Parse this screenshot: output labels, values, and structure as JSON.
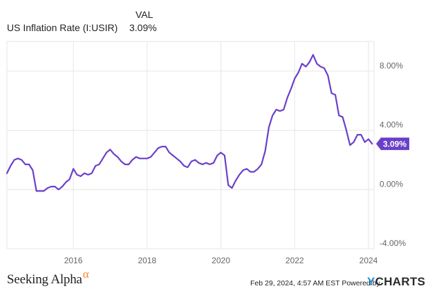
{
  "legend": {
    "column_header": "VAL",
    "series_name": "US Inflation Rate (I:USIR)",
    "series_value": "3.09%"
  },
  "footer": {
    "brand_name": "Seeking Alpha",
    "brand_symbol": "α",
    "timestamp": "Feb 29, 2024, 4:57 AM EST",
    "powered_by": "Powered by",
    "ycharts_y": "Y",
    "ycharts_rest": "CHARTS"
  },
  "colors": {
    "line": "#6a3fc9",
    "badge": "#6a3fc9",
    "grid": "#e6e6e6",
    "axis_text": "#666666"
  },
  "chart_data": {
    "type": "line",
    "title": "",
    "xlabel": "",
    "ylabel": "",
    "xlim": [
      2014.2,
      2024.15
    ],
    "ylim": [
      -4.0,
      10.0
    ],
    "grid": true,
    "y_axis_side": "right",
    "x_ticks": [
      2016,
      2018,
      2020,
      2022,
      2024
    ],
    "x_tick_labels": [
      "2016",
      "2018",
      "2020",
      "2022",
      "2024"
    ],
    "y_ticks": [
      8,
      4,
      0,
      -4
    ],
    "y_tick_labels": [
      "8.00%",
      "4.00%",
      "0.00%",
      "-4.00%"
    ],
    "last_value_label": "3.09%",
    "series": [
      {
        "name": "US Inflation Rate (I:USIR)",
        "x": [
          2014.2,
          2014.3,
          2014.4,
          2014.5,
          2014.6,
          2014.7,
          2014.8,
          2014.9,
          2015.0,
          2015.1,
          2015.2,
          2015.3,
          2015.4,
          2015.5,
          2015.6,
          2015.7,
          2015.8,
          2015.9,
          2016.0,
          2016.1,
          2016.2,
          2016.3,
          2016.4,
          2016.5,
          2016.6,
          2016.7,
          2016.8,
          2016.9,
          2017.0,
          2017.1,
          2017.2,
          2017.3,
          2017.4,
          2017.5,
          2017.6,
          2017.7,
          2017.8,
          2017.9,
          2018.0,
          2018.1,
          2018.2,
          2018.3,
          2018.4,
          2018.5,
          2018.6,
          2018.7,
          2018.8,
          2018.9,
          2019.0,
          2019.1,
          2019.2,
          2019.3,
          2019.4,
          2019.5,
          2019.6,
          2019.7,
          2019.8,
          2019.9,
          2020.0,
          2020.1,
          2020.2,
          2020.3,
          2020.4,
          2020.5,
          2020.6,
          2020.7,
          2020.8,
          2020.9,
          2021.0,
          2021.1,
          2021.2,
          2021.3,
          2021.4,
          2021.5,
          2021.6,
          2021.7,
          2021.8,
          2021.9,
          2022.0,
          2022.1,
          2022.2,
          2022.3,
          2022.4,
          2022.5,
          2022.6,
          2022.7,
          2022.8,
          2022.9,
          2023.0,
          2023.1,
          2023.2,
          2023.3,
          2023.4,
          2023.5,
          2023.6,
          2023.7,
          2023.8,
          2023.9,
          2024.0,
          2024.1
        ],
        "values": [
          1.1,
          1.6,
          2.0,
          2.1,
          2.0,
          1.7,
          1.7,
          1.3,
          -0.1,
          -0.1,
          -0.1,
          0.1,
          0.2,
          0.2,
          0.0,
          0.2,
          0.5,
          0.7,
          1.4,
          1.0,
          0.9,
          1.1,
          1.0,
          1.1,
          1.6,
          1.7,
          2.1,
          2.5,
          2.7,
          2.4,
          2.2,
          1.9,
          1.7,
          1.7,
          2.0,
          2.2,
          2.1,
          2.1,
          2.1,
          2.2,
          2.5,
          2.8,
          2.9,
          2.9,
          2.5,
          2.3,
          2.1,
          1.9,
          1.6,
          1.5,
          1.9,
          2.0,
          1.8,
          1.7,
          1.8,
          1.7,
          1.8,
          2.3,
          2.5,
          2.3,
          0.3,
          0.1,
          0.6,
          1.0,
          1.3,
          1.4,
          1.2,
          1.2,
          1.4,
          1.7,
          2.6,
          4.2,
          5.0,
          5.4,
          5.3,
          5.4,
          6.2,
          6.8,
          7.5,
          7.9,
          8.5,
          8.3,
          8.6,
          9.1,
          8.5,
          8.3,
          8.2,
          7.7,
          6.5,
          6.4,
          5.0,
          4.9,
          4.0,
          3.0,
          3.2,
          3.7,
          3.7,
          3.2,
          3.4,
          3.09
        ]
      }
    ]
  }
}
